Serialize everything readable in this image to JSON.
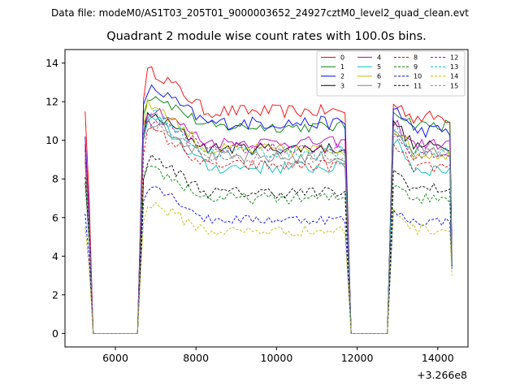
{
  "chart_data": {
    "type": "line",
    "suptitle": "Data file: modeM0/AS1T03_205T01_9000003652_24927cztM0_level2_quad_clean.evt",
    "title": "Quadrant 2 module wise count rates with 100.0s bins.",
    "xlabel": "",
    "ylabel": "",
    "x_offset_label": "+3.266e8",
    "xlim": [
      4750,
      14750
    ],
    "ylim": [
      -0.7,
      14.7
    ],
    "xticks": [
      6000,
      8000,
      10000,
      12000,
      14000
    ],
    "xtick_labels": [
      "6000",
      "8000",
      "10000",
      "12000",
      "14000"
    ],
    "yticks": [
      0,
      2,
      4,
      6,
      8,
      10,
      12,
      14
    ],
    "ytick_labels": [
      "0",
      "2",
      "4",
      "6",
      "8",
      "10",
      "12",
      "14"
    ],
    "grid": false,
    "legend_position": "upper-right",
    "legend_columns": 4,
    "segments": [
      {
        "start": 5250,
        "end": 5450
      },
      {
        "start": 6650,
        "end": 11750
      },
      {
        "start": 12850,
        "end": 14350
      }
    ],
    "gap_times": [
      5450,
      5550,
      6550,
      11850,
      12750
    ],
    "series": [
      {
        "name": "0",
        "color": "#ff0000",
        "dash": "solid",
        "start": 11.5,
        "level1": 13.5,
        "level2": 11.5,
        "level3": 11.2,
        "gap_peak": 11.8,
        "end": 4.0,
        "noise": 0.35
      },
      {
        "name": "1",
        "color": "#008000",
        "dash": "solid",
        "start": 9.8,
        "level1": 12.3,
        "level2": 10.7,
        "level3": 10.8,
        "gap_peak": 11.5,
        "end": 3.8,
        "noise": 0.3
      },
      {
        "name": "2",
        "color": "#0000ff",
        "dash": "solid",
        "start": 10.2,
        "level1": 12.6,
        "level2": 10.9,
        "level3": 10.5,
        "gap_peak": 11.6,
        "end": 4.6,
        "noise": 0.35
      },
      {
        "name": "3",
        "color": "#000000",
        "dash": "solid",
        "start": 9.5,
        "level1": 11.2,
        "level2": 9.6,
        "level3": 9.7,
        "gap_peak": 10.8,
        "end": 3.7,
        "noise": 0.3
      },
      {
        "name": "4",
        "color": "#bf00bf",
        "dash": "solid",
        "start": 9.8,
        "level1": 11.6,
        "level2": 9.9,
        "level3": 9.8,
        "gap_peak": 10.8,
        "end": 3.9,
        "noise": 0.3
      },
      {
        "name": "5",
        "color": "#00bfbf",
        "dash": "solid",
        "start": 9.0,
        "level1": 11.0,
        "level2": 8.6,
        "level3": 8.5,
        "gap_peak": 10.0,
        "end": 3.6,
        "noise": 0.35
      },
      {
        "name": "6",
        "color": "#bfbf00",
        "dash": "solid",
        "start": 9.4,
        "level1": 11.8,
        "level2": 9.5,
        "level3": 9.3,
        "gap_peak": 10.6,
        "end": 3.8,
        "noise": 0.35
      },
      {
        "name": "7",
        "color": "#808080",
        "dash": "solid",
        "start": 9.2,
        "level1": 11.0,
        "level2": 9.1,
        "level3": 9.4,
        "gap_peak": 10.3,
        "end": 3.7,
        "noise": 0.35
      },
      {
        "name": "8",
        "color": "#ff0000",
        "dash": "dashed",
        "start": 8.9,
        "level1": 10.4,
        "level2": 8.7,
        "level3": 8.6,
        "gap_peak": 9.6,
        "end": 3.5,
        "noise": 0.3
      },
      {
        "name": "9",
        "color": "#008000",
        "dash": "dashed",
        "start": 7.8,
        "level1": 8.4,
        "level2": 7.0,
        "level3": 7.0,
        "gap_peak": 7.8,
        "end": 3.4,
        "noise": 0.3
      },
      {
        "name": "10",
        "color": "#0000ff",
        "dash": "dashed",
        "start": 6.2,
        "level1": 7.6,
        "level2": 5.9,
        "level3": 5.8,
        "gap_peak": 6.2,
        "end": 3.3,
        "noise": 0.25
      },
      {
        "name": "11",
        "color": "#000000",
        "dash": "dashed",
        "start": 8.1,
        "level1": 9.0,
        "level2": 7.3,
        "level3": 7.5,
        "gap_peak": 8.3,
        "end": 3.5,
        "noise": 0.3
      },
      {
        "name": "12",
        "color": "#bf00bf",
        "dash": "dashed",
        "start": 9.5,
        "level1": 11.0,
        "level2": 9.6,
        "level3": 9.2,
        "gap_peak": 10.2,
        "end": 3.6,
        "noise": 0.3
      },
      {
        "name": "13",
        "color": "#00bfbf",
        "dash": "dashed",
        "start": 8.8,
        "level1": 11.3,
        "level2": 9.4,
        "level3": 9.4,
        "gap_peak": 10.3,
        "end": 3.6,
        "noise": 0.35
      },
      {
        "name": "14",
        "color": "#bfbf00",
        "dash": "dashed",
        "start": 5.5,
        "level1": 6.6,
        "level2": 5.3,
        "level3": 5.4,
        "gap_peak": 6.3,
        "end": 3.0,
        "noise": 0.3
      },
      {
        "name": "15",
        "color": "#808080",
        "dash": "dashed",
        "start": 9.0,
        "level1": 10.8,
        "level2": 9.0,
        "level3": 9.3,
        "gap_peak": 10.1,
        "end": 3.7,
        "noise": 0.3
      }
    ]
  }
}
